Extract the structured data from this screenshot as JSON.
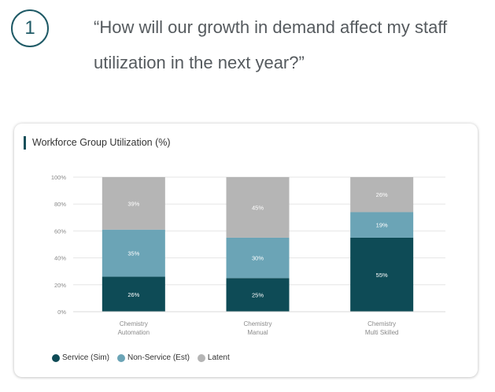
{
  "header": {
    "step_number": "1",
    "question": "“How will our growth in demand affect my staff utilization in the next year?”"
  },
  "colors": {
    "service": "#0e4b56",
    "non_service": "#6ba4b6",
    "latent": "#b5b5b5",
    "accent": "#164f5a"
  },
  "chart_data": {
    "type": "bar",
    "stacked": true,
    "title": "Workforce Group Utilization (%)",
    "categories": [
      [
        "Chemistry",
        "Automation"
      ],
      [
        "Chemistry",
        "Manual"
      ],
      [
        "Chemistry",
        "Multi Skilled"
      ]
    ],
    "series": [
      {
        "name": "Service (Sim)",
        "color": "#0e4b56",
        "values": [
          26,
          25,
          55
        ],
        "labels": [
          "26%",
          "25%",
          "55%"
        ]
      },
      {
        "name": "Non-Service (Est)",
        "color": "#6ba4b6",
        "values": [
          35,
          30,
          19
        ],
        "labels": [
          "35%",
          "30%",
          "19%"
        ]
      },
      {
        "name": "Latent",
        "color": "#b5b5b5",
        "values": [
          39,
          45,
          26
        ],
        "labels": [
          "39%",
          "45%",
          "26%"
        ]
      }
    ],
    "ylim": [
      0,
      100
    ],
    "yticks": [
      "0%",
      "20%",
      "40%",
      "60%",
      "80%",
      "100%"
    ],
    "ytick_values": [
      0,
      20,
      40,
      60,
      80,
      100
    ],
    "grid": true,
    "legend_position": "bottom-left"
  }
}
